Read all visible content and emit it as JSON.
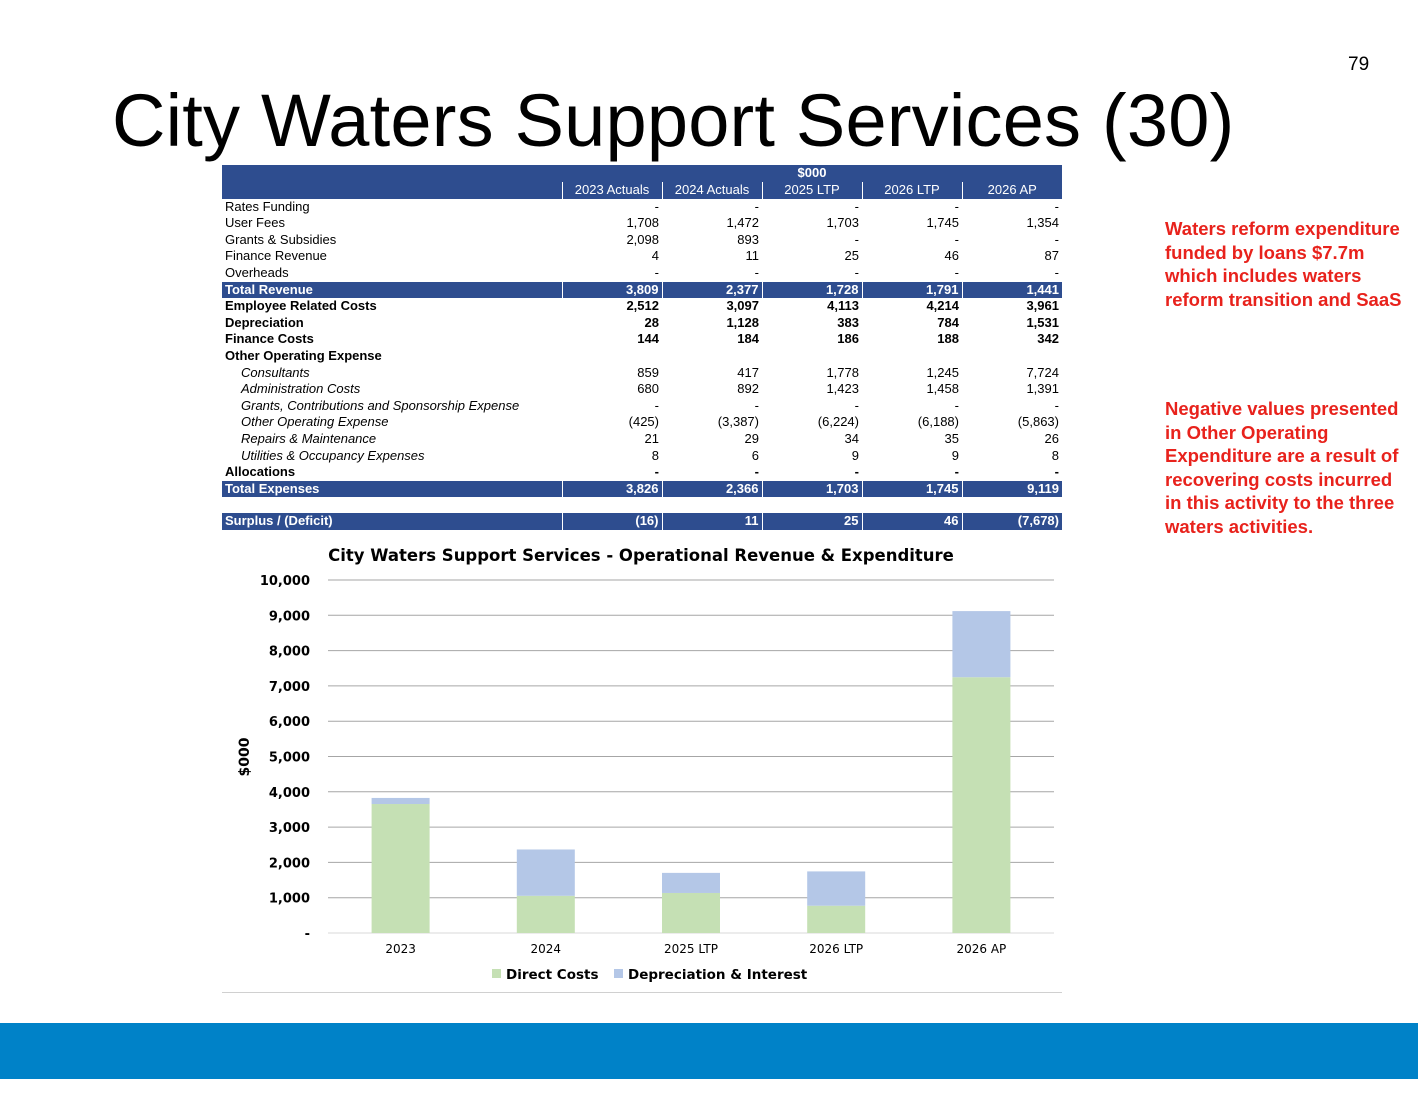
{
  "page_number": "79",
  "title": "City Waters Support Services (30)",
  "table": {
    "unit_label": "$000",
    "columns": [
      "2023 Actuals",
      "2024 Actuals",
      "2025 LTP",
      "2026 LTP",
      "2026 AP"
    ],
    "rows": [
      {
        "label": "Rates Funding",
        "values": [
          "-",
          "-",
          "-",
          "-",
          "-"
        ],
        "style": "normal"
      },
      {
        "label": "User Fees",
        "values": [
          "1,708",
          "1,472",
          "1,703",
          "1,745",
          "1,354"
        ],
        "style": "normal"
      },
      {
        "label": "Grants & Subsidies",
        "values": [
          "2,098",
          "893",
          "-",
          "-",
          "-"
        ],
        "style": "normal"
      },
      {
        "label": "Finance Revenue",
        "values": [
          "4",
          "11",
          "25",
          "46",
          "87"
        ],
        "style": "normal"
      },
      {
        "label": "Overheads",
        "values": [
          "-",
          "-",
          "-",
          "-",
          "-"
        ],
        "style": "normal"
      },
      {
        "label": "Total Revenue",
        "values": [
          "3,809",
          "2,377",
          "1,728",
          "1,791",
          "1,441"
        ],
        "style": "total"
      },
      {
        "label": "Employee Related Costs",
        "values": [
          "2,512",
          "3,097",
          "4,113",
          "4,214",
          "3,961"
        ],
        "style": "bold"
      },
      {
        "label": "Depreciation",
        "values": [
          "28",
          "1,128",
          "383",
          "784",
          "1,531"
        ],
        "style": "bold"
      },
      {
        "label": "Finance Costs",
        "values": [
          "144",
          "184",
          "186",
          "188",
          "342"
        ],
        "style": "bold"
      },
      {
        "label": "Other Operating  Expense",
        "values": [
          "",
          "",
          "",
          "",
          ""
        ],
        "style": "bold"
      },
      {
        "label": "Consultants",
        "values": [
          "859",
          "417",
          "1,778",
          "1,245",
          "7,724"
        ],
        "style": "sub"
      },
      {
        "label": "Administration Costs",
        "values": [
          "680",
          "892",
          "1,423",
          "1,458",
          "1,391"
        ],
        "style": "sub"
      },
      {
        "label": "Grants, Contributions and Sponsorship Expense",
        "values": [
          "-",
          "-",
          "-",
          "-",
          "-"
        ],
        "style": "sub"
      },
      {
        "label": "Other Operating Expense",
        "values": [
          "(425)",
          "(3,387)",
          "(6,224)",
          "(6,188)",
          "(5,863)"
        ],
        "style": "sub"
      },
      {
        "label": "Repairs & Maintenance",
        "values": [
          "21",
          "29",
          "34",
          "35",
          "26"
        ],
        "style": "sub"
      },
      {
        "label": "Utilities & Occupancy Expenses",
        "values": [
          "8",
          "6",
          "9",
          "9",
          "8"
        ],
        "style": "sub"
      },
      {
        "label": "Allocations",
        "values": [
          "-",
          "-",
          "-",
          "-",
          "-"
        ],
        "style": "bold"
      },
      {
        "label": "Total Expenses",
        "values": [
          "3,826",
          "2,366",
          "1,703",
          "1,745",
          "9,119"
        ],
        "style": "total"
      },
      {
        "label": "",
        "values": [
          "",
          "",
          "",
          "",
          ""
        ],
        "style": "spacer"
      },
      {
        "label": "Surplus / (Deficit)",
        "values": [
          "(16)",
          "11",
          "25",
          "46",
          "(7,678)"
        ],
        "style": "total"
      }
    ]
  },
  "notes": [
    "Waters reform expenditure funded by loans $7.7m which includes waters reform transition and SaaS",
    "Negative values presented in Other Operating Expenditure are a result of recovering costs incurred in this activity to the three waters activities."
  ],
  "chart_data": {
    "type": "bar",
    "stacked": true,
    "title": "City Waters Support Services - Operational Revenue & Expenditure",
    "xlabel": "",
    "ylabel": "$000",
    "categories": [
      "2023",
      "2024",
      "2025 LTP",
      "2026 LTP",
      "2026 AP"
    ],
    "series": [
      {
        "name": "Direct Costs",
        "values": [
          3654,
          1054,
          1134,
          773,
          7246
        ],
        "color": "#c5e0b4"
      },
      {
        "name": "Depreciation & Interest",
        "values": [
          172,
          1312,
          569,
          972,
          1873
        ],
        "color": "#b4c7e7"
      }
    ],
    "ylim": [
      0,
      10000
    ],
    "yticks": [
      0,
      1000,
      2000,
      3000,
      4000,
      5000,
      6000,
      7000,
      8000,
      9000,
      10000
    ],
    "ytick_labels": [
      "-",
      "1,000",
      "2,000",
      "3,000",
      "4,000",
      "5,000",
      "6,000",
      "7,000",
      "8,000",
      "9,000",
      "10,000"
    ],
    "grid": true,
    "legend": "bottom"
  },
  "colors": {
    "table_header": "#2e4d8f",
    "note_text": "#e8221c",
    "footer_bar": "#0082c8",
    "gridline": "#a6a6a6"
  }
}
